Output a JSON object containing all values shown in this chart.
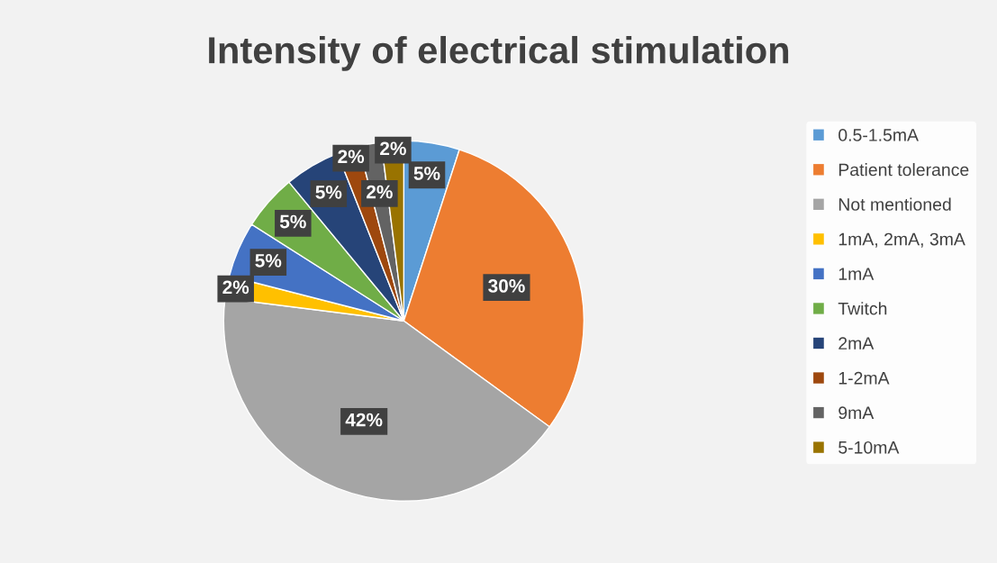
{
  "chart_data": {
    "type": "pie",
    "title": "Intensity of electrical stimulation",
    "categories": [
      "0.5-1.5mA",
      "Patient tolerance",
      "Not mentioned",
      "1mA, 2mA, 3mA",
      "1mA",
      "Twitch",
      "2mA",
      "1-2mA",
      "9mA",
      "5-10mA"
    ],
    "values": [
      5,
      30,
      42,
      2,
      5,
      5,
      5,
      2,
      2,
      2
    ],
    "colors": [
      "#5b9bd5",
      "#ed7d31",
      "#a5a5a5",
      "#ffc000",
      "#4472c4",
      "#70ad47",
      "#264478",
      "#9e480e",
      "#636363",
      "#997300"
    ],
    "value_labels": [
      "5%",
      "30%",
      "42%",
      "2%",
      "5%",
      "5%",
      "5%",
      "2%",
      "2%",
      "2%"
    ],
    "legend": "right"
  }
}
